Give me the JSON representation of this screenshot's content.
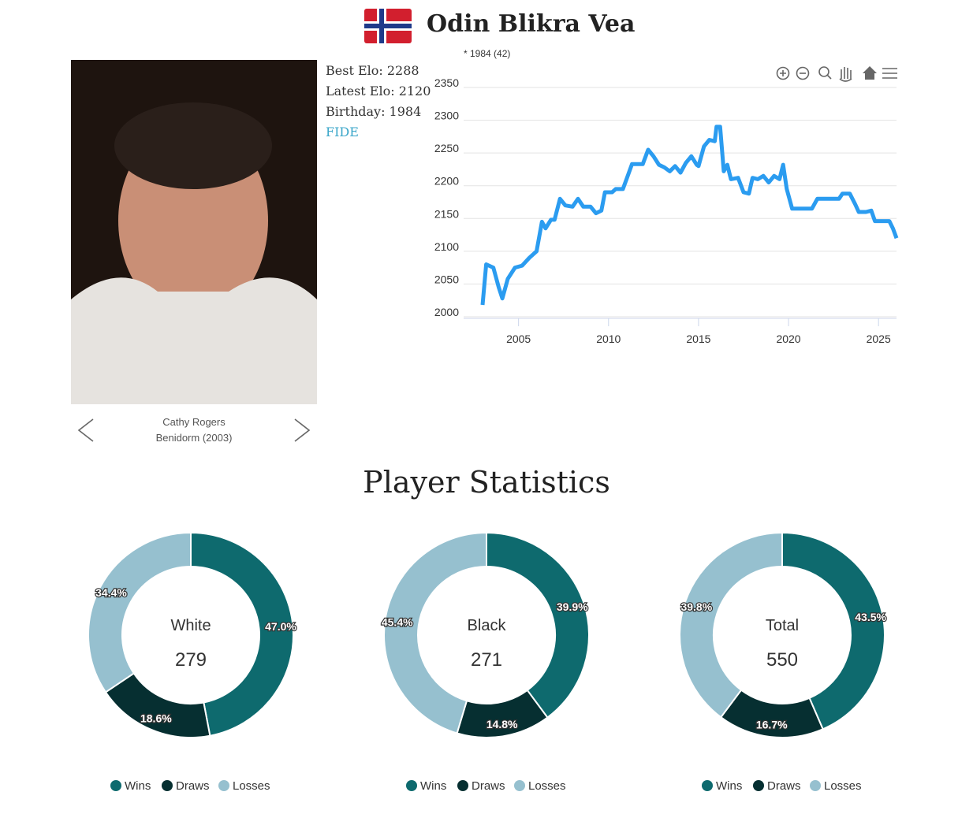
{
  "header": {
    "name": "Odin Blikra Vea"
  },
  "profile": {
    "best_elo": "Best Elo: 2288",
    "latest_elo": "Latest Elo: 2120",
    "birthday": "Birthday: 1984",
    "fide_link": "FIDE"
  },
  "photo": {
    "credit": "Cathy Rogers",
    "caption": "Benidorm (2003)"
  },
  "section_title": "Player Statistics",
  "chart_data": [
    {
      "type": "line",
      "subtitle": "* 1984 (42)",
      "color": "#2b9cf0",
      "grid": true,
      "x": [
        2003.0,
        2003.2,
        2003.6,
        2003.9,
        2004.1,
        2004.4,
        2004.8,
        2005.2,
        2005.6,
        2006.0,
        2006.3,
        2006.5,
        2006.8,
        2007.0,
        2007.3,
        2007.6,
        2008.0,
        2008.3,
        2008.6,
        2009.0,
        2009.3,
        2009.6,
        2009.8,
        2010.2,
        2010.4,
        2010.8,
        2011.0,
        2011.3,
        2011.6,
        2011.9,
        2012.2,
        2012.5,
        2012.8,
        2013.1,
        2013.4,
        2013.7,
        2014.0,
        2014.3,
        2014.6,
        2014.9,
        2015.0,
        2015.3,
        2015.6,
        2015.9,
        2016.0,
        2016.2,
        2016.4,
        2016.6,
        2016.8,
        2017.2,
        2017.5,
        2017.8,
        2018.0,
        2018.3,
        2018.6,
        2018.9,
        2019.2,
        2019.5,
        2019.7,
        2019.9,
        2020.2,
        2020.6,
        2021.0,
        2021.3,
        2021.6,
        2022.0,
        2022.4,
        2022.8,
        2023.0,
        2023.4,
        2023.7,
        2023.9,
        2024.3,
        2024.6,
        2024.8,
        2025.2,
        2025.6,
        2025.8,
        2026.0
      ],
      "values": [
        2018,
        2080,
        2075,
        2045,
        2028,
        2058,
        2075,
        2078,
        2090,
        2100,
        2145,
        2135,
        2148,
        2148,
        2180,
        2170,
        2168,
        2180,
        2168,
        2168,
        2158,
        2162,
        2190,
        2190,
        2195,
        2195,
        2210,
        2233,
        2233,
        2233,
        2255,
        2245,
        2232,
        2228,
        2222,
        2230,
        2220,
        2235,
        2245,
        2232,
        2230,
        2260,
        2270,
        2268,
        2290,
        2290,
        2222,
        2232,
        2210,
        2212,
        2190,
        2188,
        2212,
        2210,
        2215,
        2205,
        2215,
        2210,
        2232,
        2195,
        2165,
        2165,
        2165,
        2165,
        2180,
        2180,
        2180,
        2180,
        2188,
        2188,
        2172,
        2160,
        2160,
        2162,
        2146,
        2146,
        2146,
        2135,
        2120
      ],
      "xlim": [
        2003,
        2026
      ],
      "ylim": [
        2000,
        2350
      ],
      "xticks": [
        2005,
        2010,
        2015,
        2020,
        2025
      ],
      "yticks": [
        2000,
        2050,
        2100,
        2150,
        2200,
        2250,
        2300,
        2350
      ]
    },
    {
      "type": "pie",
      "title": "White",
      "total": 279,
      "categories": [
        "Wins",
        "Draws",
        "Losses"
      ],
      "values": [
        47.0,
        18.6,
        34.4
      ],
      "value_labels": [
        "47.0%",
        "18.6%",
        "34.4%"
      ],
      "colors": [
        "#0e6a6e",
        "#062f31",
        "#96c0cf"
      ]
    },
    {
      "type": "pie",
      "title": "Black",
      "total": 271,
      "categories": [
        "Wins",
        "Draws",
        "Losses"
      ],
      "values": [
        39.9,
        14.8,
        45.4
      ],
      "value_labels": [
        "39.9%",
        "14.8%",
        "45.4%"
      ],
      "colors": [
        "#0e6a6e",
        "#062f31",
        "#96c0cf"
      ]
    },
    {
      "type": "pie",
      "title": "Total",
      "total": 550,
      "categories": [
        "Wins",
        "Draws",
        "Losses"
      ],
      "values": [
        43.5,
        16.7,
        39.8
      ],
      "value_labels": [
        "43.5%",
        "16.7%",
        "39.8%"
      ],
      "colors": [
        "#0e6a6e",
        "#062f31",
        "#96c0cf"
      ]
    }
  ]
}
